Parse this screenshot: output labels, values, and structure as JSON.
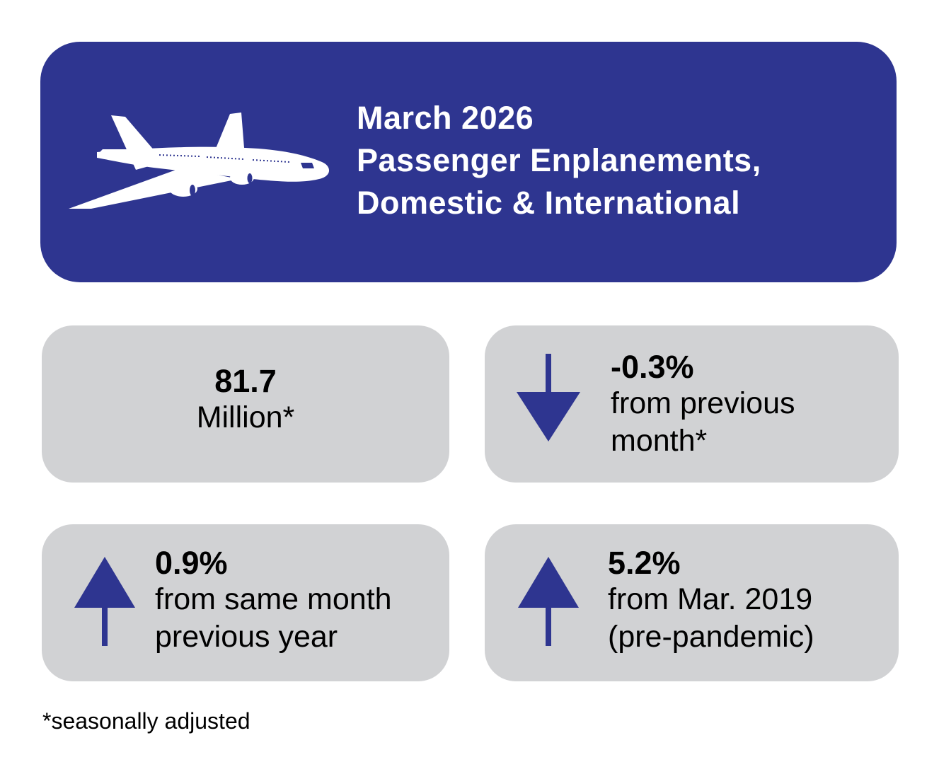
{
  "banner": {
    "title_line1": "March 2026",
    "title_line2": "Passenger Enplanements,",
    "title_line3": "Domestic & International",
    "bg_color": "#2e3590",
    "icon": "airplane-icon"
  },
  "stats": {
    "total": {
      "value": "81.7",
      "label": "Million*"
    },
    "monthly": {
      "value": "-0.3%",
      "line1": "from previous",
      "line2": "month*",
      "direction": "down"
    },
    "yearly": {
      "value": "0.9%",
      "line1": "from same month",
      "line2": "previous year",
      "direction": "up"
    },
    "prepandemic": {
      "value": "5.2%",
      "line1": "from Mar. 2019",
      "line2": "(pre-pandemic)",
      "direction": "up"
    }
  },
  "footnote": "*seasonally adjusted",
  "colors": {
    "card_bg": "#d1d2d4",
    "arrow": "#2e3590"
  }
}
